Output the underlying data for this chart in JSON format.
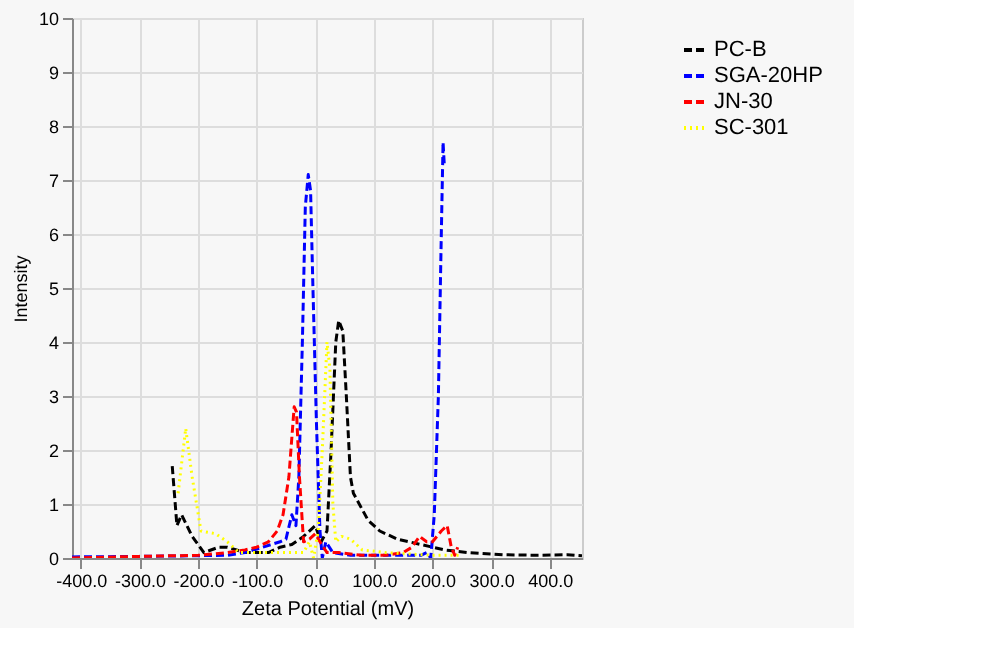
{
  "chart_data": {
    "type": "line",
    "xlabel": "Zeta Potential (mV)",
    "ylabel": "Intensity",
    "xlim": [
      -415,
      455
    ],
    "ylim": [
      0,
      10
    ],
    "xticks": [
      {
        "value": -400,
        "label": "-400.0"
      },
      {
        "value": -300,
        "label": "-300.0"
      },
      {
        "value": -200,
        "label": "-200.0"
      },
      {
        "value": -100,
        "label": "-100.0"
      },
      {
        "value": 0,
        "label": "0.0"
      },
      {
        "value": 100,
        "label": "100.0"
      },
      {
        "value": 200,
        "label": "200.0"
      },
      {
        "value": 300,
        "label": "300.0"
      },
      {
        "value": 400,
        "label": "400.0"
      }
    ],
    "yticks": [
      0,
      1,
      2,
      3,
      4,
      5,
      6,
      7,
      8,
      9,
      10
    ],
    "grid": true,
    "legend": "right",
    "marker": "none",
    "series": [
      {
        "name": "PC-B",
        "color": "#000000",
        "line_style": "dashed",
        "x": [
          -244,
          -236,
          -228,
          -210,
          -190,
          -165,
          -150,
          -120,
          -80,
          -60,
          -40,
          -20,
          0,
          10,
          20,
          27,
          35,
          40,
          47,
          53,
          60,
          65,
          75,
          90,
          110,
          140,
          180,
          220,
          260,
          320,
          380,
          430,
          455
        ],
        "values": [
          1.7,
          0.6,
          0.8,
          0.4,
          0.1,
          0.2,
          0.2,
          0.1,
          0.1,
          0.2,
          0.25,
          0.4,
          0.6,
          0.3,
          0.5,
          2.0,
          4.0,
          4.4,
          4.2,
          3.0,
          1.5,
          1.2,
          1.0,
          0.7,
          0.5,
          0.35,
          0.25,
          0.15,
          0.1,
          0.06,
          0.05,
          0.06,
          0.04
        ]
      },
      {
        "name": "SGA-20HP",
        "color": "#0000ff",
        "line_style": "dashed",
        "x": [
          -415,
          -300,
          -150,
          -120,
          -90,
          -60,
          -50,
          -40,
          -33,
          -28,
          -22,
          -17,
          -12,
          -8,
          -4,
          2,
          8,
          12,
          18,
          30,
          60,
          120,
          180,
          190,
          197,
          203,
          210,
          215,
          218,
          220
        ],
        "values": [
          0.02,
          0.03,
          0.05,
          0.1,
          0.2,
          0.3,
          0.35,
          0.8,
          0.6,
          1.5,
          4.0,
          6.5,
          7.1,
          6.8,
          5.0,
          2.5,
          0.5,
          0.0,
          0.3,
          0.1,
          0.05,
          0.05,
          0.05,
          0.1,
          0.0,
          0.8,
          3.0,
          6.0,
          7.7,
          7.3
        ]
      },
      {
        "name": "JN-30",
        "color": "#ff0000",
        "line_style": "dashed",
        "x": [
          -415,
          -300,
          -200,
          -150,
          -120,
          -100,
          -80,
          -65,
          -55,
          -45,
          -36,
          -32,
          -27,
          -20,
          -10,
          0,
          8,
          20,
          40,
          80,
          120,
          150,
          165,
          178,
          190,
          200,
          215,
          225,
          232,
          238,
          243
        ],
        "values": [
          0.0,
          0.03,
          0.05,
          0.1,
          0.15,
          0.2,
          0.3,
          0.5,
          0.8,
          1.5,
          2.8,
          2.7,
          1.5,
          0.3,
          0.35,
          0.45,
          0.3,
          0.1,
          0.1,
          0.05,
          0.05,
          0.1,
          0.2,
          0.4,
          0.3,
          0.3,
          0.5,
          0.6,
          0.2,
          0.05,
          0.2
        ]
      },
      {
        "name": "SC-301",
        "color": "#ffff00",
        "line_style": "dotted",
        "x": [
          -234,
          -221,
          -210,
          -195,
          -170,
          -150,
          -130,
          -80,
          -20,
          -10,
          -3,
          5,
          12,
          20,
          25,
          30,
          35,
          45,
          60,
          80,
          120,
          200,
          250
        ],
        "values": [
          1.2,
          2.4,
          1.5,
          0.5,
          0.45,
          0.3,
          0.1,
          0.1,
          0.1,
          0.3,
          0.0,
          0.5,
          2.0,
          4.0,
          3.5,
          1.0,
          0.3,
          0.4,
          0.35,
          0.15,
          0.1,
          0.05,
          0.05
        ]
      }
    ]
  }
}
